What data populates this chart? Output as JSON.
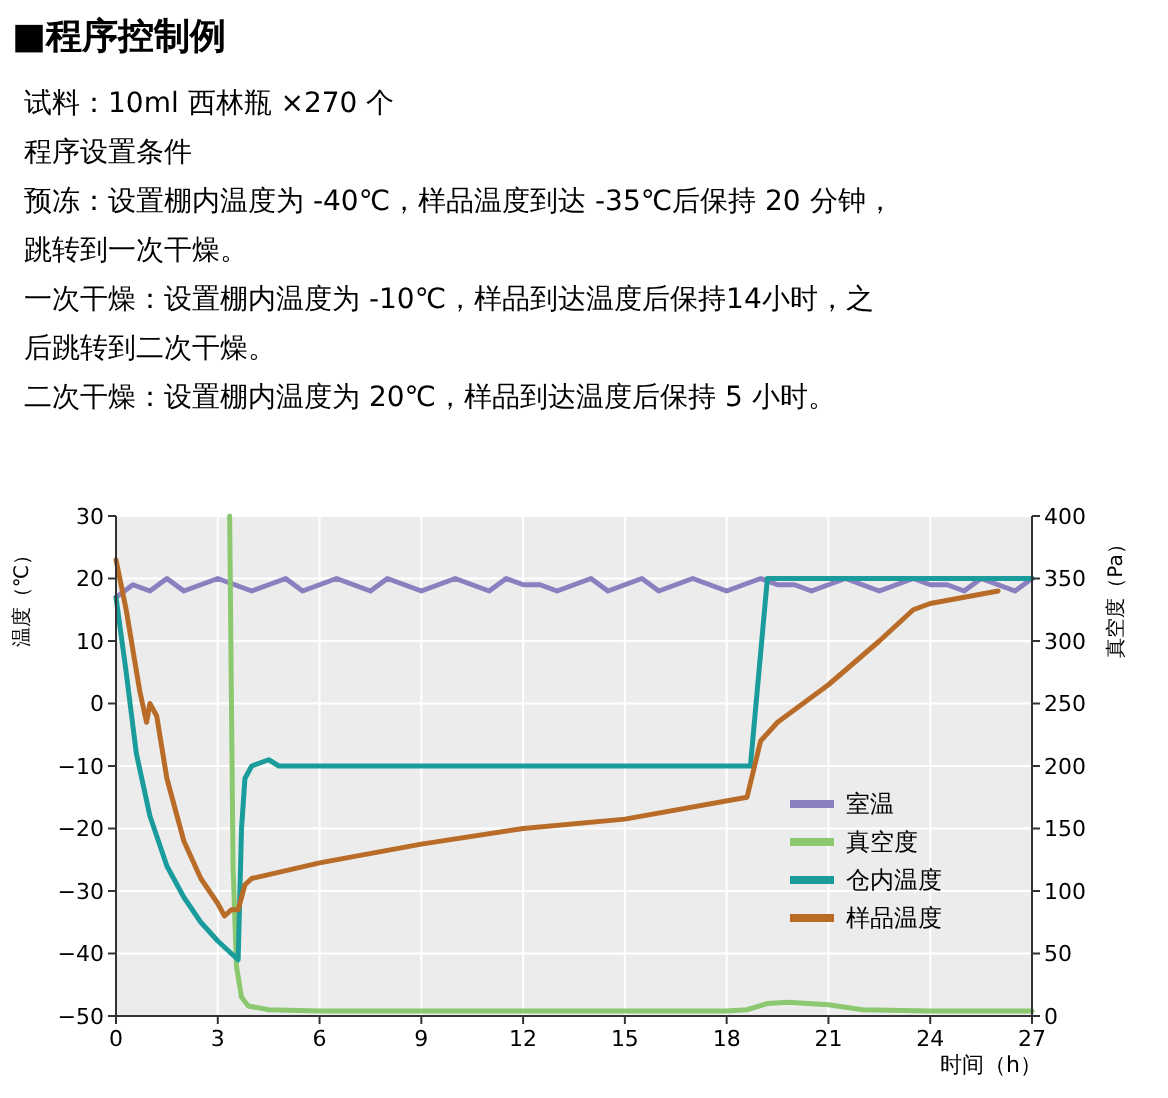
{
  "chart_data": {
    "type": "line",
    "title": "■程序控制例",
    "annotations": [
      "试料：10ml 西林瓶 ×270 个",
      "程序设置条件",
      "预冻：设置棚内温度为 -40℃，样品温度到达 -35℃后保持 20 分钟，",
      "跳转到一次干燥。",
      "一次干燥：设置棚内温度为 -10℃，样品到达温度后保持14小时，之",
      "后跳转到二次干燥。",
      "二次干燥：设置棚内温度为 20℃，样品到达温度后保持 5 小时。"
    ],
    "xlabel": "时间（h）",
    "ylabel": "温度（℃）",
    "y2label": "真空度（Pa）",
    "xlim": [
      0,
      27
    ],
    "xticks": [
      0,
      3,
      6,
      9,
      12,
      15,
      18,
      21,
      24,
      27
    ],
    "ylim": [
      -50,
      30
    ],
    "yticks": [
      -50,
      -40,
      -30,
      -20,
      -10,
      0,
      10,
      20,
      30
    ],
    "y2lim": [
      0,
      400
    ],
    "y2ticks": [
      0,
      50,
      100,
      150,
      200,
      250,
      300,
      350,
      400
    ],
    "grid": true,
    "legend": "bottom right",
    "line_style": "solid",
    "series": [
      {
        "name": "室温",
        "color": "#8a80c0",
        "x": [
          0,
          0.5,
          1,
          1.5,
          2,
          2.5,
          3,
          3.5,
          4,
          4.5,
          5,
          5.5,
          6,
          6.5,
          7,
          7.5,
          8,
          8.5,
          9,
          9.5,
          10,
          10.5,
          11,
          11.5,
          12,
          12.5,
          13,
          13.5,
          14,
          14.5,
          15,
          15.5,
          16,
          16.5,
          17,
          17.5,
          18,
          18.5,
          19,
          19.5,
          20,
          20.5,
          21,
          21.5,
          22,
          22.5,
          23,
          23.5,
          24,
          24.5,
          25,
          25.5,
          26,
          26.5,
          27
        ],
        "values": [
          17,
          19,
          18,
          20,
          18,
          19,
          20,
          19,
          18,
          19,
          20,
          18,
          19,
          20,
          19,
          18,
          20,
          19,
          18,
          19,
          20,
          19,
          18,
          20,
          19,
          19,
          18,
          19,
          20,
          18,
          19,
          20,
          18,
          19,
          20,
          19,
          18,
          19,
          20,
          19,
          19,
          18,
          19,
          20,
          19,
          18,
          19,
          20,
          19,
          19,
          18,
          20,
          19,
          18,
          20
        ]
      },
      {
        "name": "真空度",
        "color": "#8cc870",
        "axis": "y2",
        "x": [
          3.35,
          3.45,
          3.55,
          3.7,
          3.9,
          4.5,
          6,
          9,
          12,
          15,
          18,
          18.6,
          19.2,
          19.8,
          21,
          22,
          24,
          27
        ],
        "values": [
          400,
          120,
          40,
          15,
          8,
          5,
          4,
          4,
          4,
          4,
          4,
          5,
          10,
          11,
          9,
          5,
          4,
          4
        ]
      },
      {
        "name": "仓内温度",
        "color": "#1a9c9c",
        "x": [
          0,
          0.3,
          0.6,
          1,
          1.5,
          2,
          2.5,
          3,
          3.4,
          3.6,
          3.7,
          3.8,
          4,
          4.5,
          4.8,
          18.7,
          19.2,
          27
        ],
        "values": [
          17,
          5,
          -8,
          -18,
          -26,
          -31,
          -35,
          -38,
          -40,
          -41,
          -20,
          -12,
          -10,
          -9,
          -10,
          -10,
          20,
          20
        ]
      },
      {
        "name": "样品温度",
        "color": "#b86c28",
        "x": [
          0,
          0.3,
          0.7,
          0.9,
          1,
          1.2,
          1.5,
          2,
          2.5,
          3,
          3.2,
          3.4,
          3.6,
          3.8,
          4,
          6,
          9,
          12,
          15,
          18.6,
          19,
          19.5,
          21,
          22.5,
          23.5,
          24,
          26
        ],
        "values": [
          23,
          15,
          2,
          -3,
          0,
          -2,
          -12,
          -22,
          -28,
          -32,
          -34,
          -33,
          -33,
          -29,
          -28,
          -25.5,
          -22.5,
          -20,
          -18.5,
          -15,
          -6,
          -3,
          3,
          10,
          15,
          16,
          18
        ]
      }
    ]
  }
}
